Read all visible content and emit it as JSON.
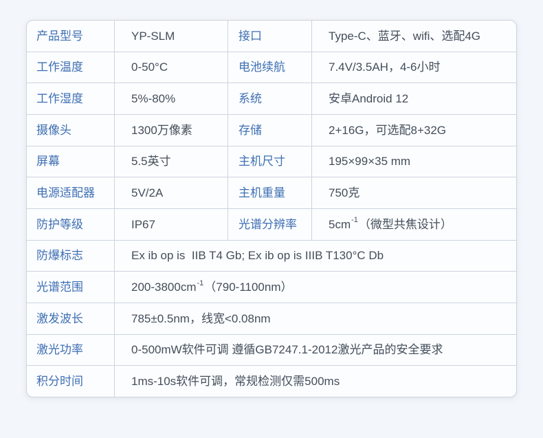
{
  "colors": {
    "page_bg": "#f3f6fa",
    "table_bg": "#fcfdff",
    "border": "#ccd4de",
    "label": "#3e6fb2",
    "value": "#434e5a"
  },
  "table": {
    "rows": [
      {
        "label1": "产品型号",
        "value1": "YP-SLM",
        "label2": "接口",
        "value2": "Type-C、蓝牙、wifi、选配4G"
      },
      {
        "label1": "工作温度",
        "value1": "0-50°C",
        "label2": "电池续航",
        "value2": "7.4V/3.5AH，4-6小时"
      },
      {
        "label1": "工作湿度",
        "value1": "5%-80%",
        "label2": "系统",
        "value2": "安卓Android 12"
      },
      {
        "label1": "摄像头",
        "value1": "1300万像素",
        "label2": "存储",
        "value2": "2+16G，可选配8+32G"
      },
      {
        "label1": "屏幕",
        "value1": "5.5英寸",
        "label2": "主机尺寸",
        "value2": "195×99×35 mm"
      },
      {
        "label1": "电源适配器",
        "value1": "5V/2A",
        "label2": "主机重量",
        "value2": "750克"
      },
      {
        "label1": "防护等级",
        "value1": "IP67",
        "label2": "光谱分辨率",
        "value2": {
          "pre": "5cm",
          "sup": "-1",
          "post": "（微型共焦设计）"
        }
      },
      {
        "label": "防爆标志",
        "value": "Ex ib op is  IIB T4 Gb; Ex ib op is IIIB T130°C Db"
      },
      {
        "label": "光谱范围",
        "value": {
          "pre": "200-3800cm",
          "sup": "-1",
          "post": "（790-1100nm）"
        }
      },
      {
        "label": "激发波长",
        "value": "785±0.5nm，线宽<0.08nm"
      },
      {
        "label": "激光功率",
        "value": "0-500mW软件可调 遵循GB7247.1-2012激光产品的安全要求"
      },
      {
        "label": "积分时间",
        "value": "1ms-10s软件可调，常规检测仅需500ms"
      }
    ]
  }
}
